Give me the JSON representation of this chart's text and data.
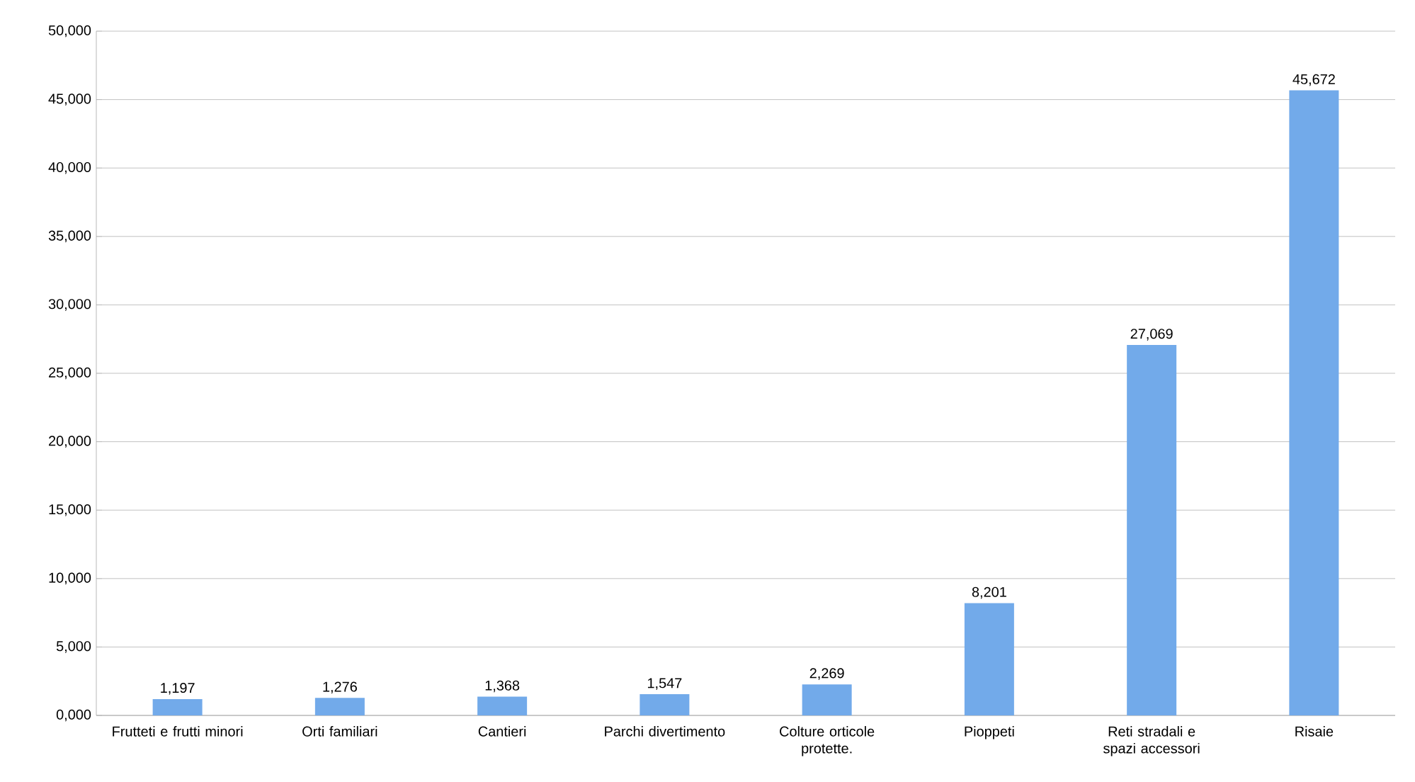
{
  "chart_data": {
    "type": "bar",
    "categories": [
      "Frutteti e frutti minori",
      "Orti familiari",
      "Cantieri",
      "Parchi divertimento",
      "Colture orticole protette.",
      "Pioppeti",
      "Reti stradali e spazi accessori",
      "Risaie"
    ],
    "values": [
      1197,
      1276,
      1368,
      1547,
      2269,
      8201,
      27069,
      45672
    ],
    "value_labels": [
      "1,197",
      "1,276",
      "1,368",
      "1,547",
      "2,269",
      "8,201",
      "27,069",
      "45,672"
    ],
    "color": "#72aaea",
    "ylim": [
      0,
      50000
    ],
    "yticks": [
      {
        "value": 0,
        "label": "0,000"
      },
      {
        "value": 5000,
        "label": "5,000"
      },
      {
        "value": 10000,
        "label": "10,000"
      },
      {
        "value": 15000,
        "label": "15,000"
      },
      {
        "value": 20000,
        "label": "20,000"
      },
      {
        "value": 25000,
        "label": "25,000"
      },
      {
        "value": 30000,
        "label": "30,000"
      },
      {
        "value": 35000,
        "label": "35,000"
      },
      {
        "value": 40000,
        "label": "40,000"
      },
      {
        "value": 45000,
        "label": "45,000"
      },
      {
        "value": 50000,
        "label": "50,000"
      }
    ],
    "grid": "y"
  }
}
